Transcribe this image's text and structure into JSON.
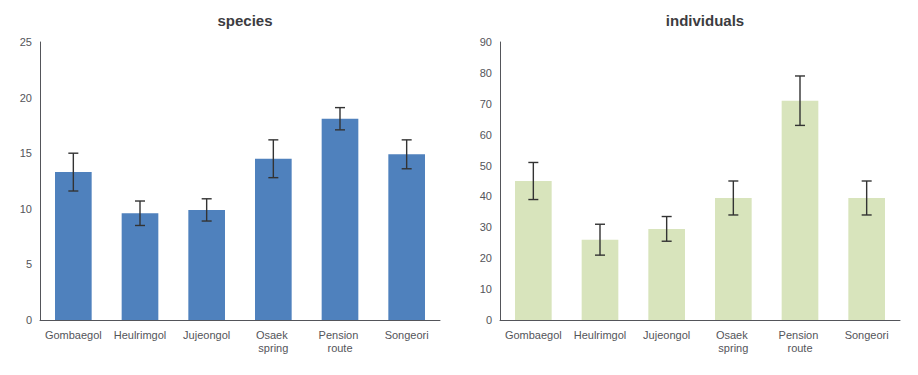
{
  "chart_data": [
    {
      "type": "bar",
      "title": "species",
      "categories": [
        "Gombaegol",
        "Heulrimgol",
        "Jujeongol",
        "Osaek spring",
        "Pension route",
        "Songeori"
      ],
      "values": [
        13.3,
        9.6,
        9.9,
        14.5,
        18.1,
        14.9
      ],
      "errors": [
        1.7,
        1.1,
        1.0,
        1.7,
        1.0,
        1.3
      ],
      "color": "#4f81bd",
      "ylim": [
        0,
        25
      ],
      "yticks": [
        0,
        5,
        10,
        15,
        20,
        25
      ],
      "grid": false
    },
    {
      "type": "bar",
      "title": "individuals",
      "categories": [
        "Gombaegol",
        "Heulrimgol",
        "Jujeongol",
        "Osaek spring",
        "Pension route",
        "Songeori"
      ],
      "values": [
        45.0,
        26.0,
        29.5,
        39.5,
        71.0,
        39.5
      ],
      "errors": [
        6.0,
        5.0,
        4.0,
        5.5,
        8.0,
        5.5
      ],
      "color": "#d8e4bc",
      "ylim": [
        0,
        90
      ],
      "yticks": [
        0,
        10,
        20,
        30,
        40,
        50,
        60,
        70,
        80,
        90
      ],
      "grid": false
    }
  ]
}
